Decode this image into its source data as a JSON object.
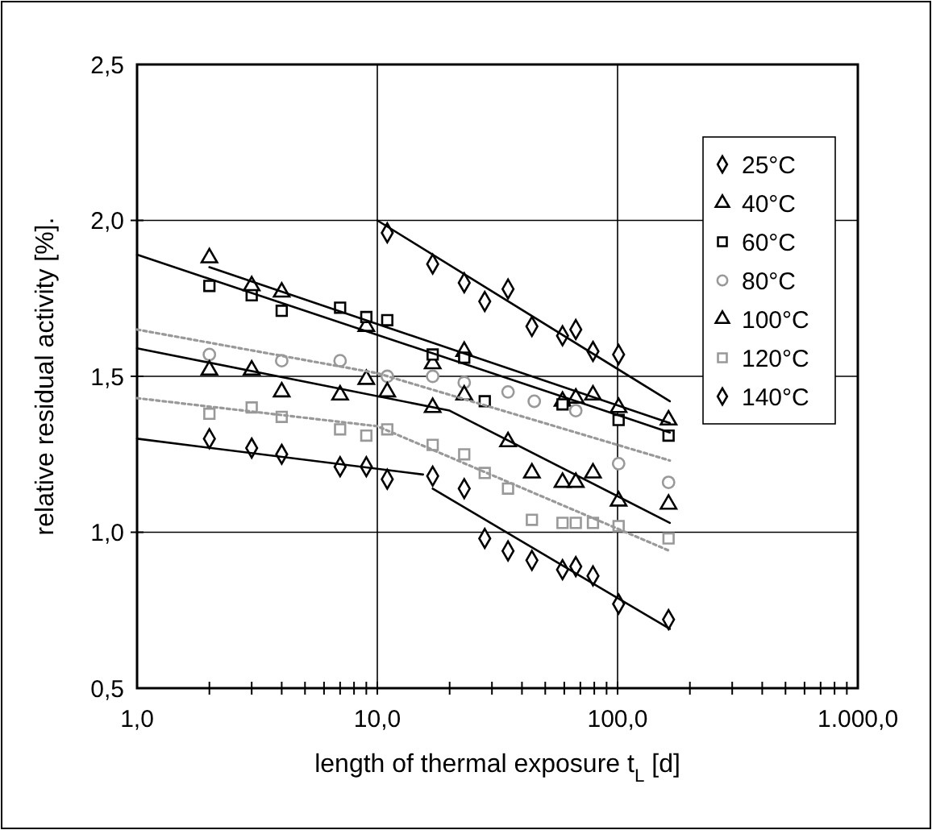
{
  "chart_data": {
    "type": "scatter",
    "xlabel": "length of thermal exposure t$_{L}$ [d]",
    "ylabel": "relative residual activity [%].",
    "log": "x",
    "grid": true,
    "legend": "top right",
    "xlim": [
      1,
      1000
    ],
    "ylim": [
      0.5,
      2.5
    ],
    "xticks": [
      {
        "value": 1,
        "label": "1,0"
      },
      {
        "value": 2,
        "label": null
      },
      {
        "value": 3,
        "label": null
      },
      {
        "value": 4,
        "label": null
      },
      {
        "value": 5,
        "label": null
      },
      {
        "value": 6,
        "label": null
      },
      {
        "value": 7,
        "label": null
      },
      {
        "value": 8,
        "label": null
      },
      {
        "value": 9,
        "label": null
      },
      {
        "value": 10,
        "label": "10,0"
      },
      {
        "value": 20,
        "label": null
      },
      {
        "value": 30,
        "label": null
      },
      {
        "value": 40,
        "label": null
      },
      {
        "value": 50,
        "label": null
      },
      {
        "value": 60,
        "label": null
      },
      {
        "value": 70,
        "label": null
      },
      {
        "value": 80,
        "label": null
      },
      {
        "value": 90,
        "label": null
      },
      {
        "value": 100,
        "label": "100,0"
      },
      {
        "value": 200,
        "label": null
      },
      {
        "value": 300,
        "label": null
      },
      {
        "value": 400,
        "label": null
      },
      {
        "value": 500,
        "label": null
      },
      {
        "value": 600,
        "label": null
      },
      {
        "value": 700,
        "label": null
      },
      {
        "value": 800,
        "label": null
      },
      {
        "value": 900,
        "label": null
      },
      {
        "value": 1000,
        "label": "1.000,0"
      }
    ],
    "yticks": [
      {
        "value": 0.5,
        "label": "0,5"
      },
      {
        "value": 1,
        "label": "1,0"
      },
      {
        "value": 1.5,
        "label": "1,5"
      },
      {
        "value": 2,
        "label": "2,0"
      },
      {
        "value": 2.5,
        "label": "2,5"
      }
    ],
    "series": [
      {
        "name": "25°C",
        "color": "#000000",
        "marker": "diamond",
        "x": [
          11,
          17,
          23,
          28,
          35,
          44,
          59,
          67,
          79,
          101
        ],
        "values": [
          1.96,
          1.86,
          1.8,
          1.74,
          1.78,
          1.66,
          1.63,
          1.65,
          1.58,
          1.57
        ]
      },
      {
        "name": "40°C",
        "color": "#000000",
        "marker": "triangle",
        "x": [
          2,
          3,
          4,
          9,
          17,
          23,
          59,
          67,
          79,
          101,
          163
        ],
        "values": [
          1.88,
          1.79,
          1.77,
          1.66,
          1.54,
          1.58,
          1.42,
          1.43,
          1.44,
          1.4,
          1.36
        ]
      },
      {
        "name": "60°C",
        "color": "#000000",
        "marker": "square",
        "x": [
          2,
          3,
          4,
          7,
          9,
          11,
          17,
          23,
          28,
          59,
          101,
          163
        ],
        "values": [
          1.79,
          1.76,
          1.71,
          1.72,
          1.69,
          1.68,
          1.57,
          1.56,
          1.42,
          1.41,
          1.36,
          1.31
        ]
      },
      {
        "name": "80°C",
        "color": "#999999",
        "marker": "circle",
        "x": [
          2,
          4,
          7,
          11,
          17,
          23,
          35,
          45,
          67,
          101,
          163
        ],
        "values": [
          1.57,
          1.55,
          1.55,
          1.5,
          1.5,
          1.48,
          1.45,
          1.42,
          1.39,
          1.22,
          1.16
        ]
      },
      {
        "name": "100°C",
        "color": "#000000",
        "marker": "triangle",
        "x": [
          2,
          3,
          4,
          7,
          9,
          11,
          17,
          23,
          35,
          44,
          59,
          67,
          79,
          101,
          163
        ],
        "values": [
          1.52,
          1.52,
          1.45,
          1.44,
          1.49,
          1.45,
          1.4,
          1.44,
          1.29,
          1.19,
          1.16,
          1.16,
          1.19,
          1.1,
          1.09
        ]
      },
      {
        "name": "120°C",
        "color": "#999999",
        "marker": "square",
        "x": [
          2,
          3,
          4,
          7,
          9,
          11,
          17,
          23,
          28,
          35,
          44,
          59,
          67,
          79,
          101,
          163
        ],
        "values": [
          1.38,
          1.4,
          1.37,
          1.33,
          1.31,
          1.33,
          1.28,
          1.25,
          1.19,
          1.14,
          1.04,
          1.03,
          1.03,
          1.03,
          1.02,
          0.98
        ]
      },
      {
        "name": "140°C",
        "color": "#000000",
        "marker": "diamond",
        "x": [
          2,
          3,
          4,
          7,
          9,
          11,
          17,
          23,
          28,
          35,
          44,
          59,
          67,
          79,
          101,
          163
        ],
        "values": [
          1.3,
          1.27,
          1.25,
          1.21,
          1.21,
          1.17,
          1.18,
          1.14,
          0.98,
          0.94,
          0.91,
          0.88,
          0.89,
          0.86,
          0.77,
          0.72
        ]
      },
      {
        "type": "line",
        "color": "#000000",
        "marker": "none",
        "line_style": "solid",
        "x": [
          10,
          165
        ],
        "values": [
          2.0,
          1.42
        ]
      },
      {
        "type": "line",
        "color": "#000000",
        "marker": "none",
        "line_style": "solid",
        "x": [
          2,
          165
        ],
        "values": [
          1.85,
          1.35
        ]
      },
      {
        "type": "line",
        "color": "#000000",
        "marker": "none",
        "line_style": "solid",
        "x": [
          1,
          165
        ],
        "values": [
          1.89,
          1.32
        ]
      },
      {
        "type": "line",
        "color": "#999999",
        "marker": "none",
        "line_style": "dotted",
        "x": [
          1,
          10,
          165
        ],
        "values": [
          1.65,
          1.51,
          1.23
        ]
      },
      {
        "type": "line",
        "color": "#000000",
        "marker": "none",
        "line_style": "solid",
        "x": [
          1,
          20,
          165
        ],
        "values": [
          1.59,
          1.39,
          1.03
        ]
      },
      {
        "type": "line",
        "color": "#999999",
        "marker": "none",
        "line_style": "dotted",
        "x": [
          1,
          10,
          165
        ],
        "values": [
          1.43,
          1.34,
          0.94
        ]
      },
      {
        "type": "line",
        "color": "#000000",
        "marker": "none",
        "line_style": "solid",
        "x": [
          1,
          15.5
        ],
        "values": [
          1.3,
          1.185
        ]
      },
      {
        "type": "line",
        "color": "#000000",
        "marker": "none",
        "line_style": "solid",
        "x": [
          17,
          165
        ],
        "values": [
          1.14,
          0.69
        ]
      }
    ]
  }
}
